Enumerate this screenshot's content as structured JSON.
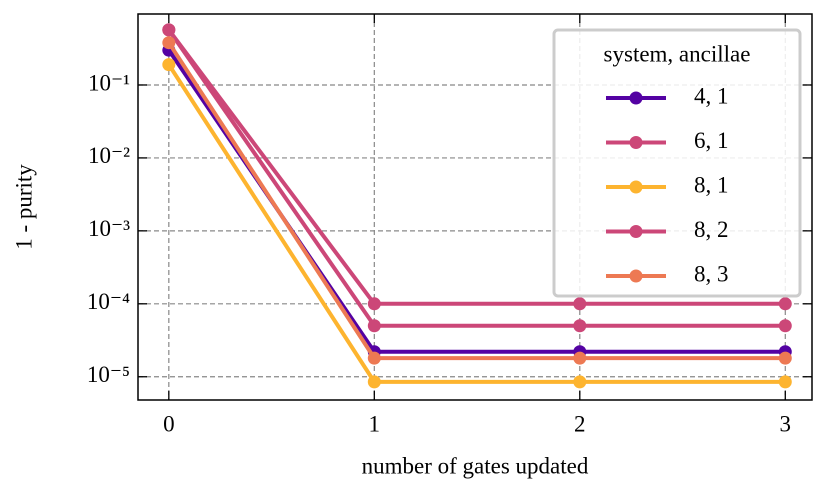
{
  "chart_data": {
    "type": "line",
    "x_label": "number of gates updated",
    "y_label": "1 - purity",
    "x": [
      0,
      1,
      2,
      3
    ],
    "xlim": [
      -0.15,
      3.13
    ],
    "xticks": [
      0,
      1,
      2,
      3
    ],
    "yscale": "log",
    "ylim": [
      4.8e-06,
      0.94
    ],
    "yticks": [
      {
        "value": 1e-05,
        "label": "10⁻⁵"
      },
      {
        "value": 0.0001,
        "label": "10⁻⁴"
      },
      {
        "value": 0.001,
        "label": "10⁻³"
      },
      {
        "value": 0.01,
        "label": "10⁻²"
      },
      {
        "value": 0.1,
        "label": "10⁻¹"
      }
    ],
    "grid": true,
    "legend_title": "system, ancillae",
    "legend_loc": "upper right",
    "series": [
      {
        "name": "4, 1",
        "color": "#5402a3",
        "values": [
          0.3,
          2.2e-05,
          2.2e-05,
          2.2e-05
        ]
      },
      {
        "name": "6, 1",
        "color": "#cc4778",
        "values": [
          0.57,
          0.0001,
          0.0001,
          0.0001
        ]
      },
      {
        "name": "8, 1",
        "color": "#fdb42f",
        "values": [
          0.19,
          8.5e-06,
          8.5e-06,
          8.5e-06
        ]
      },
      {
        "name": "8, 2",
        "color": "#cc4778",
        "values": [
          0.57,
          5e-05,
          5e-05,
          5e-05
        ]
      },
      {
        "name": "8, 3",
        "color": "#ed7953",
        "values": [
          0.38,
          1.8e-05,
          1.8e-05,
          1.8e-05
        ]
      }
    ]
  }
}
